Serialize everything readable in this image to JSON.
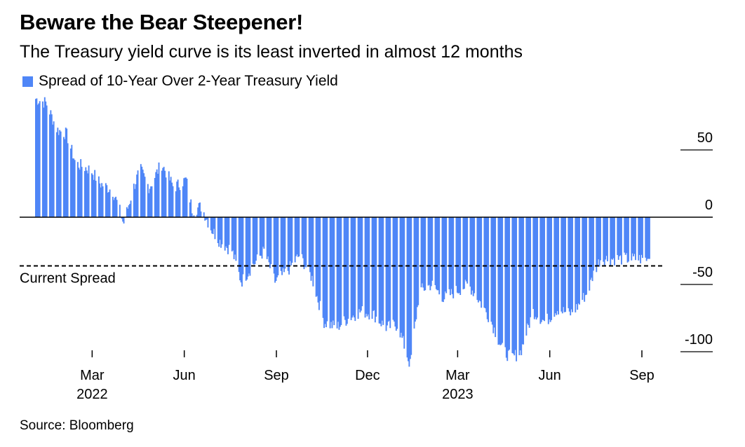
{
  "title": "Beware the Bear Steepener!",
  "subtitle": "The Treasury yield curve is its least inverted in almost 12 months",
  "source": "Source: Bloomberg",
  "colors": {
    "bar": "#4f86f7",
    "axis": "#000000",
    "text": "#000000"
  },
  "chart_data": {
    "type": "bar",
    "title": "Beware the Bear Steepener!",
    "subtitle": "The Treasury yield curve is its least inverted in almost 12 months",
    "legend": [
      {
        "label": "Spread of 10-Year Over 2-Year Treasury Yield",
        "color": "#4f86f7"
      }
    ],
    "xlabel": "",
    "ylabel": "",
    "ylim": [
      -110,
      90
    ],
    "yticks": [
      50,
      0,
      -50,
      -100
    ],
    "ytick_labels": [
      "50",
      "0",
      "-50",
      "-100"
    ],
    "x_start": "2022-01-03",
    "x_end": "2023-09-08",
    "xticks": [
      {
        "month": "Mar",
        "year": "2022"
      },
      {
        "month": "Jun",
        "year": ""
      },
      {
        "month": "Sep",
        "year": ""
      },
      {
        "month": "Dec",
        "year": ""
      },
      {
        "month": "Mar",
        "year": "2023"
      },
      {
        "month": "Jun",
        "year": ""
      },
      {
        "month": "Sep",
        "year": ""
      }
    ],
    "reference_line": {
      "label": "Current Spread",
      "value": -31
    },
    "series": [
      {
        "name": "Spread of 10-Year Over 2-Year Treasury Yield",
        "frequency": "daily (business days)",
        "anchor_points": [
          {
            "t": 0.0,
            "v": 88
          },
          {
            "t": 0.017,
            "v": 85
          },
          {
            "t": 0.035,
            "v": 65
          },
          {
            "t": 0.05,
            "v": 62
          },
          {
            "t": 0.065,
            "v": 40
          },
          {
            "t": 0.09,
            "v": 35
          },
          {
            "t": 0.105,
            "v": 25
          },
          {
            "t": 0.125,
            "v": 20
          },
          {
            "t": 0.135,
            "v": 8
          },
          {
            "t": 0.143,
            "v": -5
          },
          {
            "t": 0.158,
            "v": 20
          },
          {
            "t": 0.17,
            "v": 36
          },
          {
            "t": 0.185,
            "v": 22
          },
          {
            "t": 0.205,
            "v": 40
          },
          {
            "t": 0.225,
            "v": 22
          },
          {
            "t": 0.245,
            "v": 28
          },
          {
            "t": 0.255,
            "v": 5
          },
          {
            "t": 0.27,
            "v": 8
          },
          {
            "t": 0.285,
            "v": -8
          },
          {
            "t": 0.3,
            "v": -18
          },
          {
            "t": 0.32,
            "v": -25
          },
          {
            "t": 0.335,
            "v": -48
          },
          {
            "t": 0.355,
            "v": -35
          },
          {
            "t": 0.372,
            "v": -25
          },
          {
            "t": 0.39,
            "v": -48
          },
          {
            "t": 0.41,
            "v": -40
          },
          {
            "t": 0.43,
            "v": -28
          },
          {
            "t": 0.45,
            "v": -45
          },
          {
            "t": 0.47,
            "v": -78
          },
          {
            "t": 0.49,
            "v": -82
          },
          {
            "t": 0.51,
            "v": -75
          },
          {
            "t": 0.53,
            "v": -70
          },
          {
            "t": 0.55,
            "v": -72
          },
          {
            "t": 0.57,
            "v": -82
          },
          {
            "t": 0.59,
            "v": -80
          },
          {
            "t": 0.61,
            "v": -110
          },
          {
            "t": 0.625,
            "v": -55
          },
          {
            "t": 0.645,
            "v": -50
          },
          {
            "t": 0.665,
            "v": -60
          },
          {
            "t": 0.685,
            "v": -55
          },
          {
            "t": 0.705,
            "v": -50
          },
          {
            "t": 0.72,
            "v": -60
          },
          {
            "t": 0.74,
            "v": -75
          },
          {
            "t": 0.76,
            "v": -98
          },
          {
            "t": 0.775,
            "v": -105
          },
          {
            "t": 0.79,
            "v": -100
          },
          {
            "t": 0.81,
            "v": -70
          },
          {
            "t": 0.83,
            "v": -78
          },
          {
            "t": 0.85,
            "v": -68
          },
          {
            "t": 0.87,
            "v": -72
          },
          {
            "t": 0.88,
            "v": -68
          },
          {
            "t": 0.9,
            "v": -55
          },
          {
            "t": 0.91,
            "v": -40
          },
          {
            "t": 0.92,
            "v": -31
          }
        ]
      }
    ]
  }
}
